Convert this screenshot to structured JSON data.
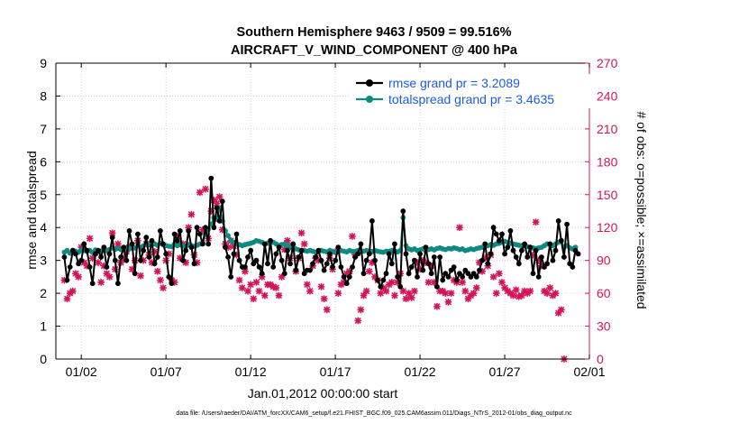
{
  "chart_data": {
    "type": "line",
    "title": "Southern Hemisphere 9463 / 9509 = 99.516%",
    "subtitle": "AIRCRAFT_V_WIND_COMPONENT @ 400 hPa",
    "xlabel": "Jan.01,2012 00:00:00 start",
    "ylabel": "rmse and totalspread",
    "y2label": "# of obs: o=possible; ×=assimilated",
    "footnote": "data file: /Users/raeder/DAI/ATM_forcXX/CAM6_setup/f.e21.FHIST_BGC.f09_025.CAM6assim.011/Diags_NTrS_2012-01/obs_diag_output.nc",
    "xlim": [
      0.5,
      32
    ],
    "ylim": [
      0,
      9
    ],
    "y2lim": [
      0,
      270
    ],
    "x_ticks": [
      2,
      7,
      12,
      17,
      22,
      27,
      32
    ],
    "x_tick_labels": [
      "01/02",
      "01/07",
      "01/12",
      "01/17",
      "01/22",
      "01/27",
      "02/01"
    ],
    "y_ticks": [
      "0",
      "1",
      "2",
      "3",
      "4",
      "5",
      "6",
      "7",
      "8",
      "9"
    ],
    "y2_ticks": [
      "0",
      "30",
      "60",
      "90",
      "120",
      "150",
      "180",
      "210",
      "240",
      "270"
    ],
    "colors": {
      "rmse": "#000000",
      "spread": "#0f8a80",
      "obs": "#d4145a",
      "legend_text": "#1a5ce0"
    },
    "series": [
      {
        "name": "rmse",
        "legend": "rmse grand pr = 3.2089",
        "values": [
          3.1,
          2.4,
          2.8,
          3.3,
          3.2,
          2.9,
          3.0,
          3.5,
          3.3,
          2.8,
          2.3,
          3.2,
          3.3,
          3.1,
          3.4,
          2.8,
          3.2,
          3.7,
          3.0,
          2.3,
          3.1,
          3.4,
          3.0,
          3.9,
          3.5,
          2.6,
          3.8,
          3.0,
          3.3,
          3.7,
          3.1,
          3.6,
          2.9,
          3.1,
          3.9,
          3.5,
          3.2,
          2.5,
          2.3,
          3.8,
          3.6,
          3.9,
          3.0,
          3.3,
          3.9,
          3.4,
          2.9,
          4.0,
          3.8,
          3.5,
          4.0,
          3.5,
          5.5,
          4.0,
          4.6,
          4.2,
          4.8,
          3.4,
          3.1,
          2.5,
          3.2,
          3.8,
          3.0,
          2.8,
          2.8,
          3.1,
          3.3,
          2.9,
          3.0,
          2.8,
          2.6,
          3.5,
          2.9,
          3.6,
          2.8,
          3.2,
          3.4,
          3.0,
          2.6,
          3.3,
          2.9,
          3.5,
          2.7,
          3.1,
          3.3,
          2.6,
          2.7,
          2.7,
          2.9,
          3.1,
          3.3,
          3.0,
          2.7,
          2.9,
          3.2,
          2.8,
          3.0,
          3.4,
          2.8,
          2.5,
          2.3,
          2.5,
          2.8,
          3.1,
          3.2,
          3.5,
          2.6,
          3.0,
          3.2,
          4.2,
          3.0,
          2.4,
          2.2,
          2.4,
          2.6,
          3.2,
          2.9,
          3.5,
          2.5,
          2.2,
          4.5,
          3.2,
          2.6,
          2.8,
          3.0,
          2.5,
          3.2,
          2.7,
          3.4,
          2.9,
          2.6,
          3.1,
          2.2,
          3.1,
          2.4,
          2.6,
          2.5,
          2.7,
          2.8,
          2.4,
          2.6,
          2.5,
          2.7,
          2.6,
          2.5,
          2.6,
          2.5,
          2.7,
          3.0,
          3.5,
          2.9,
          3.2,
          4.0,
          3.8,
          3.6,
          3.8,
          3.2,
          3.4,
          3.9,
          3.3,
          3.1,
          2.9,
          3.3,
          3.5,
          3.1,
          3.4,
          2.6,
          3.3,
          2.5,
          3.1,
          2.8,
          2.9,
          3.5,
          3.0,
          3.3,
          4.2,
          3.6,
          3.1,
          4.1,
          2.9,
          2.8,
          3.3,
          3.2
        ],
        "x_start": 1.0,
        "x_step": 0.1667
      },
      {
        "name": "totalspread",
        "legend": "totalspread grand pr = 3.4635",
        "values": [
          3.25,
          3.3,
          3.22,
          3.3,
          3.28,
          3.25,
          3.32,
          3.3,
          3.27,
          3.3,
          3.24,
          3.32,
          3.3,
          3.28,
          3.36,
          3.3,
          3.33,
          3.38,
          3.34,
          3.37,
          3.33,
          3.39,
          3.38,
          3.35,
          3.42,
          3.38,
          3.45,
          3.4,
          3.44,
          3.5,
          3.48,
          3.55,
          3.5,
          3.46,
          3.52,
          3.48,
          3.45,
          3.43,
          3.42,
          3.5,
          3.45,
          3.48,
          3.44,
          3.42,
          3.48,
          3.45,
          3.43,
          3.46,
          3.5,
          3.55,
          3.8,
          3.95,
          4.1,
          4.3,
          4.25,
          4.6,
          4.2,
          3.9,
          3.75,
          3.6,
          3.55,
          3.5,
          3.48,
          3.45,
          3.48,
          3.5,
          3.52,
          3.55,
          3.6,
          3.58,
          3.55,
          3.5,
          3.52,
          3.56,
          3.55,
          3.5,
          3.45,
          3.48,
          3.5,
          3.46,
          3.42,
          3.38,
          3.35,
          3.32,
          3.3,
          3.3,
          3.28,
          3.3,
          3.28,
          3.25,
          3.27,
          3.3,
          3.28,
          3.26,
          3.3,
          3.27,
          3.25,
          3.27,
          3.3,
          3.28,
          3.26,
          3.3,
          3.27,
          3.28,
          3.3,
          3.26,
          3.28,
          3.3,
          3.25,
          3.27,
          3.3,
          3.28,
          3.26,
          3.25,
          3.28,
          3.27,
          3.3,
          3.28,
          3.26,
          3.3,
          4.3,
          3.45,
          3.35,
          3.32,
          3.35,
          3.3,
          3.32,
          3.35,
          3.3,
          3.33,
          3.35,
          3.32,
          3.36,
          3.38,
          3.35,
          3.33,
          3.36,
          3.35,
          3.38,
          3.36,
          3.33,
          3.35,
          3.3,
          3.32,
          3.35,
          3.33,
          3.36,
          3.38,
          3.4,
          3.42,
          3.45,
          3.48,
          3.46,
          3.5,
          3.52,
          3.55,
          3.58,
          3.55,
          3.52,
          3.5,
          3.48,
          3.46,
          3.45,
          3.44,
          3.42,
          3.4,
          3.38,
          3.36,
          3.38,
          3.4,
          3.45,
          3.5,
          3.48,
          3.45,
          3.5,
          3.55,
          3.6,
          3.4,
          3.45,
          3.38,
          3.35,
          3.4
        ],
        "x_start": 1.0,
        "x_step": 0.1667
      }
    ],
    "obs_count": {
      "name": "obs",
      "note": "# of obs plotted on right axis",
      "values": [
        72,
        55,
        60,
        62,
        78,
        75,
        102,
        88,
        85,
        110,
        92,
        97,
        88,
        70,
        85,
        78,
        75,
        115,
        82,
        105,
        88,
        92,
        98,
        102,
        82,
        90,
        108,
        76,
        90,
        105,
        95,
        88,
        98,
        80,
        72,
        65,
        90,
        96,
        72,
        70,
        112,
        92,
        105,
        88,
        120,
        132,
        95,
        88,
        152,
        118,
        155,
        110,
        135,
        145,
        142,
        148,
        118,
        105,
        102,
        108,
        103,
        95,
        72,
        65,
        80,
        62,
        68,
        55,
        70,
        62,
        75,
        58,
        68,
        68,
        66,
        65,
        58,
        75,
        100,
        108,
        92,
        102,
        80,
        92,
        115,
        105,
        68,
        62,
        85,
        92,
        90,
        66,
        55,
        45,
        92,
        82,
        98,
        60,
        68,
        70,
        78,
        80,
        112,
        95,
        35,
        45,
        58,
        62,
        80,
        88,
        75,
        72,
        60,
        65,
        62,
        68,
        70,
        58,
        70,
        78,
        62,
        55,
        60,
        56,
        62,
        88,
        82,
        90,
        88,
        70,
        85,
        70,
        48,
        62,
        62,
        60,
        52,
        60,
        72,
        70,
        120,
        70,
        62,
        55,
        58,
        60,
        65,
        88,
        80,
        92,
        85,
        95,
        75,
        60,
        78,
        70,
        65,
        62,
        60,
        58,
        63,
        57,
        58,
        62,
        60,
        62,
        95,
        125,
        90,
        85,
        62,
        60,
        65,
        58,
        60,
        42,
        45,
        0
      ],
      "x_start": 1.0,
      "x_step": 0.1667
    }
  }
}
